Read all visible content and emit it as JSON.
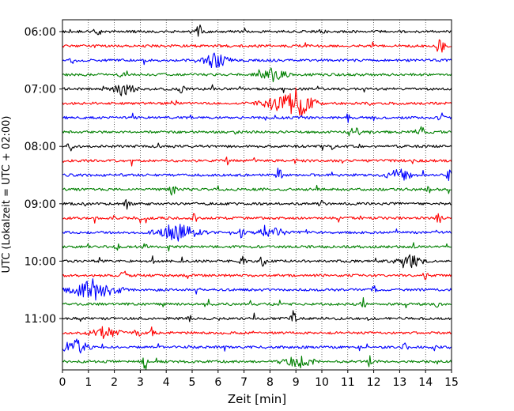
{
  "chart_data": {
    "type": "line",
    "subtype": "helicorder-seismogram",
    "xlabel": "Zeit  [min]",
    "ylabel": "UTC (Lokalzeit = UTC + 02:00)",
    "xlim": [
      0,
      15
    ],
    "x_ticks": [
      "0",
      "1",
      "2",
      "3",
      "4",
      "5",
      "6",
      "7",
      "8",
      "9",
      "10",
      "11",
      "12",
      "13",
      "14",
      "15"
    ],
    "y_ticks": [
      {
        "label": "06:00",
        "row": 0
      },
      {
        "label": "07:00",
        "row": 4
      },
      {
        "label": "08:00",
        "row": 8
      },
      {
        "label": "09:00",
        "row": 12
      },
      {
        "label": "10:00",
        "row": 16
      },
      {
        "label": "11:00",
        "row": 20
      }
    ],
    "row_interval_min": 15,
    "row_count": 24,
    "grid": "vertical dotted lines every 1 min",
    "series_colors": [
      "#000000",
      "#ff0000",
      "#0000ff",
      "#008000"
    ],
    "rows": [
      {
        "start": "06:00",
        "events": [
          {
            "t": 5.25,
            "amp": 1.6
          },
          {
            "t": 1.4,
            "amp": 0.5
          },
          {
            "t": 10.0,
            "amp": 0.4
          }
        ]
      },
      {
        "start": "06:15",
        "events": [
          {
            "t": 14.5,
            "amp": 1.0
          },
          {
            "t": 14.65,
            "amp": 0.8
          }
        ]
      },
      {
        "start": "06:30",
        "events": [
          {
            "t": 5.9,
            "amp": 1.2,
            "len": 0.8
          },
          {
            "t": 0.4,
            "amp": 0.4
          }
        ]
      },
      {
        "start": "06:45",
        "events": [
          {
            "t": 8.1,
            "amp": 0.9,
            "len": 0.9
          },
          {
            "t": 2.3,
            "amp": 0.4
          }
        ]
      },
      {
        "start": "07:00",
        "events": [
          {
            "t": 2.3,
            "amp": 0.9,
            "len": 0.8
          },
          {
            "t": 4.6,
            "amp": 0.9
          }
        ]
      },
      {
        "start": "07:15",
        "events": [
          {
            "t": 8.4,
            "amp": 1.3,
            "len": 1.2
          },
          {
            "t": 4.3,
            "amp": 0.8
          },
          {
            "t": 9.2,
            "amp": 1.5,
            "len": 0.9
          }
        ]
      },
      {
        "start": "07:30",
        "events": [
          {
            "t": 11.0,
            "amp": 0.6
          },
          {
            "t": 14.6,
            "amp": 0.8
          }
        ]
      },
      {
        "start": "07:45",
        "events": [
          {
            "t": 11.35,
            "amp": 1.3
          },
          {
            "t": 13.8,
            "amp": 0.8
          }
        ]
      },
      {
        "start": "08:00",
        "events": [
          {
            "t": 0.3,
            "amp": 1.0
          },
          {
            "t": 10.4,
            "amp": 0.4
          }
        ]
      },
      {
        "start": "08:15",
        "events": [
          {
            "t": 6.4,
            "amp": 0.8
          },
          {
            "t": 9.0,
            "amp": 0.6
          }
        ]
      },
      {
        "start": "08:30",
        "events": [
          {
            "t": 8.35,
            "amp": 1.3
          },
          {
            "t": 13.0,
            "amp": 0.8,
            "len": 0.9
          },
          {
            "t": 14.9,
            "amp": 0.8
          }
        ]
      },
      {
        "start": "08:45",
        "events": [
          {
            "t": 4.25,
            "amp": 1.1
          },
          {
            "t": 14.1,
            "amp": 0.6
          }
        ]
      },
      {
        "start": "09:00",
        "events": [
          {
            "t": 2.5,
            "amp": 0.8
          },
          {
            "t": 10.0,
            "amp": 0.6
          }
        ]
      },
      {
        "start": "09:15",
        "events": [
          {
            "t": 5.1,
            "amp": 0.8
          },
          {
            "t": 14.5,
            "amp": 1.0
          }
        ]
      },
      {
        "start": "09:30",
        "events": [
          {
            "t": 4.4,
            "amp": 1.3,
            "len": 1.4
          },
          {
            "t": 6.9,
            "amp": 1.0
          },
          {
            "t": 8.1,
            "amp": 0.7,
            "len": 1.0
          }
        ]
      },
      {
        "start": "09:45",
        "events": [
          {
            "t": 2.1,
            "amp": 0.9
          },
          {
            "t": 3.2,
            "amp": 0.7
          }
        ]
      },
      {
        "start": "10:00",
        "events": [
          {
            "t": 7.75,
            "amp": 1.7
          },
          {
            "t": 13.4,
            "amp": 0.9,
            "len": 0.9
          },
          {
            "t": 6.95,
            "amp": 0.8
          }
        ]
      },
      {
        "start": "10:15",
        "events": [
          {
            "t": 2.35,
            "amp": 1.0
          },
          {
            "t": 14.0,
            "amp": 0.6
          }
        ]
      },
      {
        "start": "10:30",
        "events": [
          {
            "t": 1.2,
            "amp": 1.6,
            "len": 1.6
          },
          {
            "t": 12.0,
            "amp": 0.6
          }
        ]
      },
      {
        "start": "10:45",
        "events": [
          {
            "t": 11.6,
            "amp": 0.8
          },
          {
            "t": 14.4,
            "amp": 0.6
          }
        ]
      },
      {
        "start": "11:00",
        "events": [
          {
            "t": 8.9,
            "amp": 1.3
          },
          {
            "t": 4.9,
            "amp": 0.5
          }
        ]
      },
      {
        "start": "11:15",
        "events": [
          {
            "t": 1.6,
            "amp": 0.9,
            "len": 1.0
          },
          {
            "t": 2.9,
            "amp": 1.1
          },
          {
            "t": 3.45,
            "amp": 1.0
          }
        ]
      },
      {
        "start": "11:30",
        "events": [
          {
            "t": 0.5,
            "amp": 1.1,
            "len": 1.0
          },
          {
            "t": 13.2,
            "amp": 0.6
          },
          {
            "t": 14.3,
            "amp": 0.5
          }
        ]
      },
      {
        "start": "11:45",
        "events": [
          {
            "t": 3.2,
            "amp": 1.4
          },
          {
            "t": 9.1,
            "amp": 1.0,
            "len": 1.0
          },
          {
            "t": 11.85,
            "amp": 1.0
          }
        ]
      }
    ]
  }
}
